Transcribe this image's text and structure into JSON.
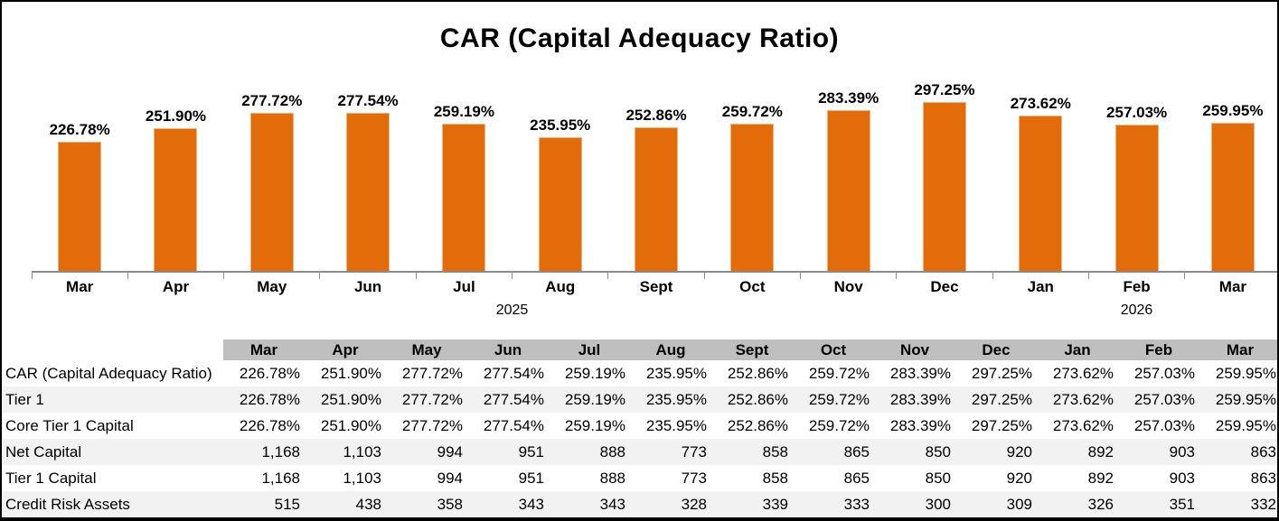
{
  "chart_data": {
    "type": "bar",
    "title": "CAR (Capital Adequacy Ratio)",
    "categories": [
      "Mar",
      "Apr",
      "May",
      "Jun",
      "Jul",
      "Aug",
      "Sept",
      "Oct",
      "Nov",
      "Dec",
      "Jan",
      "Feb",
      "Mar"
    ],
    "values": [
      226.78,
      251.9,
      277.72,
      277.54,
      259.19,
      235.95,
      252.86,
      259.72,
      283.39,
      297.25,
      273.62,
      257.03,
      259.95
    ],
    "value_labels": [
      "226.78%",
      "251.90%",
      "277.72%",
      "277.54%",
      "259.19%",
      "235.95%",
      "252.86%",
      "259.72%",
      "283.39%",
      "297.25%",
      "273.62%",
      "257.03%",
      "259.95%"
    ],
    "year_groups": [
      {
        "label": "2025",
        "start": 0,
        "end": 9
      },
      {
        "label": "2026",
        "start": 10,
        "end": 12
      }
    ],
    "xlabel": "",
    "ylabel": "",
    "ylim": [
      0,
      320
    ],
    "grid": false,
    "legend": false,
    "data_labels": true,
    "bar_color": "#E26B0A"
  },
  "table": {
    "columns": [
      "Mar",
      "Apr",
      "May",
      "Jun",
      "Jul",
      "Aug",
      "Sept",
      "Oct",
      "Nov",
      "Dec",
      "Jan",
      "Feb",
      "Mar"
    ],
    "rows": [
      {
        "label": "CAR (Capital Adequacy Ratio)",
        "values": [
          "226.78%",
          "251.90%",
          "277.72%",
          "277.54%",
          "259.19%",
          "235.95%",
          "252.86%",
          "259.72%",
          "283.39%",
          "297.25%",
          "273.62%",
          "257.03%",
          "259.95%"
        ]
      },
      {
        "label": "Tier 1",
        "values": [
          "226.78%",
          "251.90%",
          "277.72%",
          "277.54%",
          "259.19%",
          "235.95%",
          "252.86%",
          "259.72%",
          "283.39%",
          "297.25%",
          "273.62%",
          "257.03%",
          "259.95%"
        ]
      },
      {
        "label": "Core Tier 1 Capital",
        "values": [
          "226.78%",
          "251.90%",
          "277.72%",
          "277.54%",
          "259.19%",
          "235.95%",
          "252.86%",
          "259.72%",
          "283.39%",
          "297.25%",
          "273.62%",
          "257.03%",
          "259.95%"
        ]
      },
      {
        "label": "Net Capital",
        "values": [
          "1,168",
          "1,103",
          "994",
          "951",
          "888",
          "773",
          "858",
          "865",
          "850",
          "920",
          "892",
          "903",
          "863"
        ]
      },
      {
        "label": "Tier 1 Capital",
        "values": [
          "1,168",
          "1,103",
          "994",
          "951",
          "888",
          "773",
          "858",
          "865",
          "850",
          "920",
          "892",
          "903",
          "863"
        ]
      },
      {
        "label": "Credit Risk Assets",
        "values": [
          "515",
          "438",
          "358",
          "343",
          "343",
          "328",
          "339",
          "333",
          "300",
          "309",
          "326",
          "351",
          "332"
        ]
      }
    ]
  },
  "colors": {
    "bar": "#E26B0A",
    "bar_edge": "#F0B27A",
    "axis_line": "#8C8C8C",
    "table_header_bg": "#BFBFBF",
    "table_stripe_bg": "#F2F2F2",
    "text": "#000000",
    "background": "#FFFFFF"
  }
}
